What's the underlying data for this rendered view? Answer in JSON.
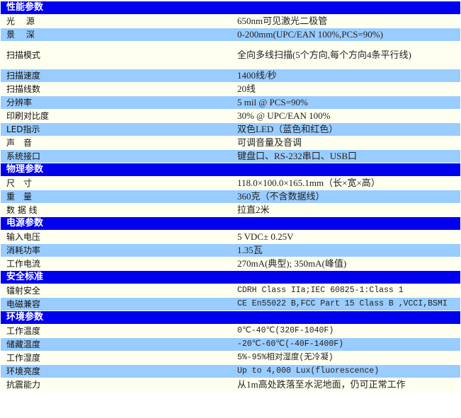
{
  "sections": [
    {
      "title": "性能参数",
      "rows": [
        {
          "k": "光　 源",
          "v": "650nm可见激光二极管"
        },
        {
          "k": "景　 深",
          "v": "0-200mm(UPC/EAN 100%,PCS=90%)"
        },
        {
          "k": "扫描模式",
          "v": "全向多线扫描(5个方向,每个方向4条平行线)"
        },
        {
          "k": "扫描速度",
          "v": "1400线/秒"
        },
        {
          "k": "扫描线数",
          "v": "20线"
        },
        {
          "k": "分辨率",
          "v": "5 mil @ PCS=90%"
        },
        {
          "k": "印刷对比度",
          "v": "30% @ UPC/EAN 100%"
        },
        {
          "k": "LED指示",
          "v": "双色LED（蓝色和红色）"
        },
        {
          "k": "声　音",
          "v": "可调音量及音调"
        },
        {
          "k": "系统接口",
          "v": "键盘口、RS-232串口、USB口"
        }
      ]
    },
    {
      "title": "物理参数",
      "rows": [
        {
          "k": "尺　寸",
          "v": "118.0×100.0×165.1mm（长×宽×高）"
        },
        {
          "k": "重　量",
          "v": "360克（不含数据线）"
        },
        {
          "k": "数 据 线",
          "v": "拉直2米"
        }
      ]
    },
    {
      "title": "电源参数",
      "rows": [
        {
          "k": "输入电压",
          "v": "5 VDC± 0.25V"
        },
        {
          "k": "消耗功率",
          "v": "1.35瓦"
        },
        {
          "k": "工作电流",
          "v": "270mA(典型); 350mA(峰值)"
        }
      ]
    },
    {
      "title": "安全标准",
      "rows": [
        {
          "k": "镭射安全",
          "v": "CDRH Class IIa;IEC 60825-1:Class 1"
        },
        {
          "k": "电磁兼容",
          "v": "CE En55022 B,FCC Part 15 Class B ,VCCI,BSMI"
        }
      ]
    },
    {
      "title": "环境参数",
      "rows": [
        {
          "k": "工作温度",
          "v": "0℃-40℃(320F-1040F)"
        },
        {
          "k": "储藏温度",
          "v": "-20℃-60℃(-40F-1400F)"
        },
        {
          "k": "工作湿度",
          "v": "5%-95%相对湿度(无冷凝)"
        },
        {
          "k": "环境亮度",
          "v": "Up to 4,000 Lux(fluorescence)"
        },
        {
          "k": "抗震能力",
          "v": "从1m高处跌落至水泥地面，仍可正常工作"
        }
      ]
    }
  ],
  "colors": {
    "section_header": "#0000ee",
    "row_light": "#fffff0",
    "row_blue": "#99ccff"
  }
}
